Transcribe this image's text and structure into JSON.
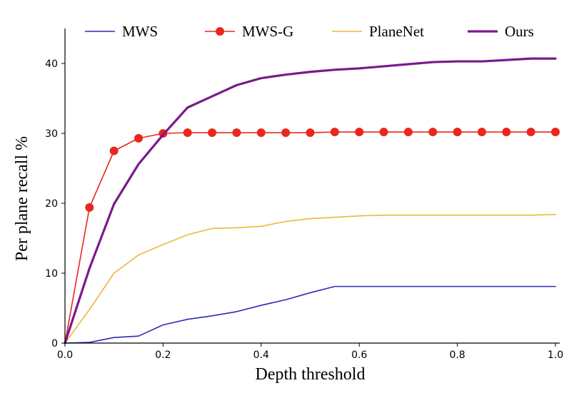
{
  "chart_data": {
    "type": "line",
    "title": "",
    "xlabel": "Depth threshold",
    "ylabel": "Per plane recall %",
    "xlim": [
      0.0,
      1.0
    ],
    "ylim": [
      0,
      45
    ],
    "x_ticks": [
      "0.0",
      "0.2",
      "0.4",
      "0.6",
      "0.8",
      "1.0"
    ],
    "y_ticks": [
      "0",
      "10",
      "20",
      "30",
      "40"
    ],
    "grid": false,
    "legend_position": "top",
    "x": [
      0,
      0.05,
      0.1,
      0.15,
      0.2,
      0.25,
      0.3,
      0.35,
      0.4,
      0.45,
      0.5,
      0.55,
      0.6,
      0.65,
      0.7,
      0.75,
      0.8,
      0.85,
      0.9,
      0.95,
      1.0
    ],
    "series": [
      {
        "name": "MWS",
        "color": "#2b2bb8",
        "marker": "none",
        "line_width": 1.6,
        "values": [
          0,
          0.1,
          0.8,
          1.0,
          2.6,
          3.4,
          3.9,
          4.5,
          5.4,
          6.2,
          7.2,
          8.1,
          8.1,
          8.1,
          8.1,
          8.1,
          8.1,
          8.1,
          8.1,
          8.1,
          8.1
        ]
      },
      {
        "name": "MWS-G",
        "color": "#e8281f",
        "marker": "circle",
        "line_width": 1.6,
        "values": [
          0,
          19.4,
          27.5,
          29.3,
          30.0,
          30.1,
          30.1,
          30.1,
          30.1,
          30.1,
          30.1,
          30.2,
          30.2,
          30.2,
          30.2,
          30.2,
          30.2,
          30.2,
          30.2,
          30.2,
          30.2
        ]
      },
      {
        "name": "PlaneNet",
        "color": "#f0b53e",
        "marker": "none",
        "line_width": 1.6,
        "values": [
          0,
          4.8,
          10.0,
          12.6,
          14.1,
          15.5,
          16.4,
          16.5,
          16.7,
          17.4,
          17.8,
          18.0,
          18.2,
          18.3,
          18.3,
          18.3,
          18.3,
          18.3,
          18.3,
          18.3,
          18.4
        ]
      },
      {
        "name": "Ours",
        "color": "#7a1a8c",
        "marker": "none",
        "line_width": 3.2,
        "values": [
          0,
          10.7,
          19.9,
          25.6,
          29.8,
          33.7,
          35.3,
          36.9,
          37.9,
          38.4,
          38.8,
          39.1,
          39.3,
          39.6,
          39.9,
          40.2,
          40.3,
          40.3,
          40.5,
          40.7,
          40.7
        ]
      }
    ]
  }
}
